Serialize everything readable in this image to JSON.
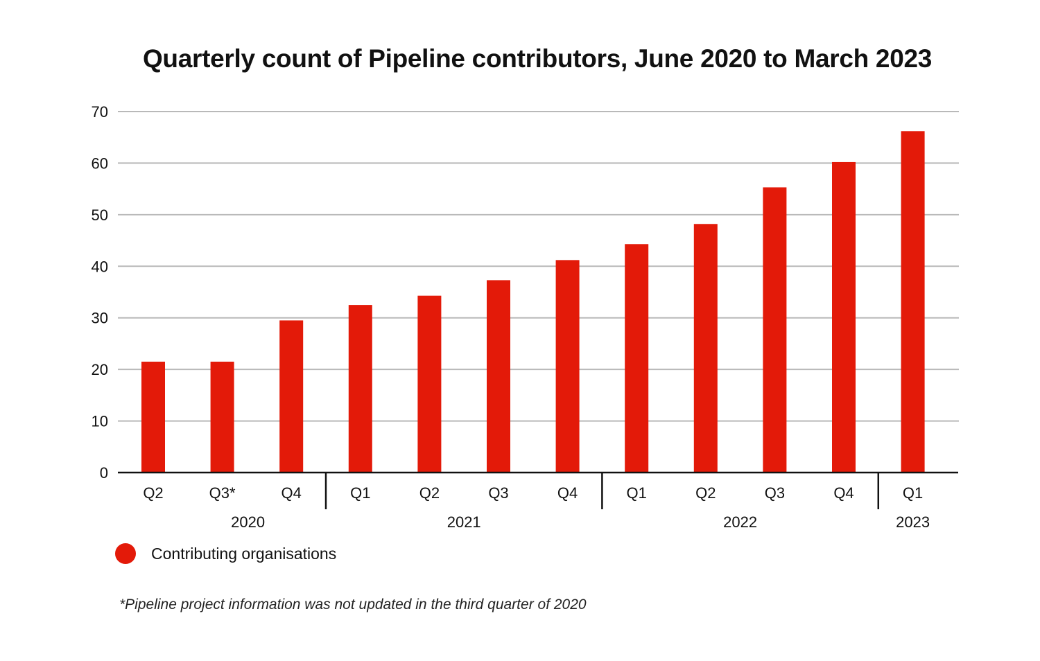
{
  "chart_data": {
    "type": "bar",
    "title": "Quarterly count of Pipeline contributors, June 2020 to March 2023",
    "categories": [
      "Q2",
      "Q3*",
      "Q4",
      "Q1",
      "Q2",
      "Q3",
      "Q4",
      "Q1",
      "Q2",
      "Q3",
      "Q4",
      "Q1"
    ],
    "year_groups": [
      {
        "label": "2020",
        "count": 3
      },
      {
        "label": "2021",
        "count": 4
      },
      {
        "label": "2022",
        "count": 4
      },
      {
        "label": "2023",
        "count": 1
      }
    ],
    "series": [
      {
        "name": "Contributing organisations",
        "color": "#e31a09",
        "values": [
          21.5,
          21.5,
          29.5,
          32.5,
          34.3,
          37.3,
          41.2,
          44.3,
          48.2,
          55.3,
          60.2,
          66.2
        ]
      }
    ],
    "ylim": [
      0,
      70
    ],
    "yticks": [
      0,
      10,
      20,
      30,
      40,
      50,
      60,
      70
    ],
    "grid": true,
    "legend_position": "bottom-left"
  },
  "footnote": "*Pipeline project information was not updated in the third quarter of 2020"
}
